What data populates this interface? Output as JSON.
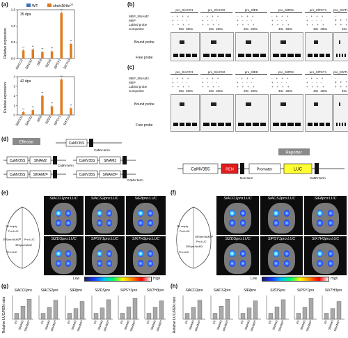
{
  "panels": {
    "a": "(a)",
    "b": "(b)",
    "c": "(c)",
    "d": "(d)",
    "e": "(e)",
    "f": "(f)",
    "g": "(g)",
    "h": "(h)"
  },
  "panel_a": {
    "legend": [
      "WT",
      "slmir164a"
    ],
    "legend_sup": "CR",
    "ylabel": "Relative expression",
    "top": {
      "timepoint": "35 dpa",
      "ylim": [
        0,
        1.5
      ],
      "ticks": [
        "0.0",
        "0.5",
        "1.0",
        "1.5"
      ]
    },
    "bottom": {
      "timepoint": "42 dpa",
      "ylim": [
        0,
        4
      ],
      "ticks": [
        "0",
        "1",
        "2",
        "3",
        "4"
      ]
    },
    "genes": [
      "SlACO1",
      "SlACS2",
      "SlE8",
      "SlZDS",
      "SlPSY1",
      "SlXTH3"
    ],
    "sig": "**"
  },
  "emsa_b": {
    "protein": "MBP_SlNAM2",
    "rows": [
      "MBP_SlNAM2",
      "MBP",
      "Labled probe",
      "Competitor"
    ],
    "bound": "Bound probe",
    "free": "Free probe",
    "promoters": [
      "pro_SlACO1",
      "pro_SlACS2",
      "pro_SlE8",
      "pro_SlZDS",
      "pro_SlPSY1",
      "pro_SlXTH3"
    ],
    "comp": [
      [
        "50x",
        "500x"
      ],
      [
        "20x",
        "200x"
      ],
      [
        "20x",
        "200x"
      ],
      [
        "40x",
        "400x"
      ],
      [
        "40x",
        "400x"
      ],
      [
        "40x",
        "400x"
      ]
    ]
  },
  "emsa_c": {
    "protein": "MBP_SlNAM3",
    "rows": [
      "MBP_SlNAM3",
      "MBP",
      "Labled probe",
      "Competitor"
    ],
    "bound": "Bound probe",
    "free": "Free probe",
    "promoters": [
      "pro_SlACO1",
      "pro_SlACS2",
      "pro_SlE8",
      "pro_SlZDS",
      "pro_SlPSY1",
      "pro_SlXTH3"
    ],
    "comp": [
      [
        "50x",
        "500x"
      ],
      [
        "20x",
        "200x"
      ],
      [
        "20x",
        "200x"
      ],
      [
        "40x",
        "400x"
      ],
      [
        "40x",
        "400x"
      ],
      [
        "40x",
        "400x"
      ]
    ]
  },
  "constructs": {
    "effector": "Effector",
    "reporter": "Reporter",
    "camv": "CaMV35S",
    "term": "CaMV-term",
    "nam2": "SlNAM2",
    "nam2m": "SlNAM2ᴹ",
    "nam3": "SlNAM3",
    "nam3m": "SlNAM3ᴹ",
    "ren": "REN",
    "nos": "Nos-term",
    "promoter": "Promoter",
    "luc": "LUC"
  },
  "leaves_e": {
    "labels": [
      "SlACO1pro:LUC",
      "SlACS2pro:LUC",
      "SlE8pro:LUC",
      "SlZDSpro:LUC",
      "SlPSY1pro:LUC",
      "SlXTH3pro:LUC"
    ],
    "diagram": [
      "SK empty",
      "Pro:LUC",
      "35Spro:NAM2ᴹ",
      "Pro:LUC",
      "35Spro:NAM2",
      "Pro:LUC"
    ]
  },
  "leaves_f": {
    "labels": [
      "SlACO1pro:LUC",
      "SlACS2pro:LUC",
      "SlE8pro:LUC",
      "SlZDSpro:LUC",
      "SlPSY1pro:LUC",
      "SlXTH3pro:LUC"
    ],
    "diagram": [
      "SK empty",
      "Pro:LUC",
      "35Spro:NAM3ᴹ",
      "Pro:LUC",
      "35Spro:NAM3",
      "Pro:LUC"
    ]
  },
  "colorbar": {
    "low": "Low",
    "high": "High"
  },
  "panel_g": {
    "ylabel": "Relative LUC/REN ratio",
    "titles": [
      "SlACO1pro",
      "SlACS2pro",
      "SlE8pro",
      "SlZDSpro",
      "SlPSY1pro",
      "SlXTH3pro"
    ],
    "xlabels": [
      "EV",
      "SlNAM2",
      "SlNAM2ᴹ"
    ],
    "ticks": [
      "0",
      "1",
      "2",
      "3",
      "4"
    ]
  },
  "panel_h": {
    "ylabel": "Relative LUC/REN ratio",
    "titles": [
      "SlACO1pro",
      "SlACS2pro",
      "SlE8pro",
      "SlZDSpro",
      "SlPSY1pro",
      "SlXTH3pro"
    ],
    "xlabels": [
      "EV",
      "SlNAM3",
      "SlNAM3ᴹ"
    ],
    "ticks": [
      "0",
      "1",
      "2",
      "3",
      "4"
    ]
  },
  "chart_data": [
    {
      "type": "bar",
      "title": "35 dpa",
      "ylabel": "Relative expression",
      "categories": [
        "SlACO1",
        "SlACS2",
        "SlE8",
        "SlZDS",
        "SlPSY1",
        "SlXTH3"
      ],
      "series": [
        {
          "name": "WT",
          "values": [
            0.01,
            0.01,
            0.01,
            0.01,
            0.01,
            0.01
          ]
        },
        {
          "name": "slmir164a",
          "values": [
            0.25,
            0.28,
            0.2,
            0.22,
            1.4,
            0.45
          ]
        }
      ],
      "ylim": [
        0,
        1.5
      ]
    },
    {
      "type": "bar",
      "title": "42 dpa",
      "ylabel": "Relative expression",
      "categories": [
        "SlACO1",
        "SlACS2",
        "SlE8",
        "SlZDS",
        "SlPSY1",
        "SlXTH3"
      ],
      "series": [
        {
          "name": "WT",
          "values": [
            0.02,
            0.02,
            0.02,
            0.02,
            0.02,
            0.02
          ]
        },
        {
          "name": "slmir164a",
          "values": [
            0.3,
            0.5,
            2.0,
            0.9,
            3.7,
            0.7
          ]
        }
      ],
      "ylim": [
        0,
        4
      ]
    },
    {
      "type": "bar",
      "ylabel": "Relative LUC/REN ratio",
      "groups": [
        "SlACO1pro",
        "SlACS2pro",
        "SlE8pro",
        "SlZDSpro",
        "SlPSY1pro",
        "SlXTH3pro"
      ],
      "categories": [
        "EV",
        "SlNAM2",
        "SlNAM2ᴹ"
      ],
      "values": [
        [
          1,
          2.2,
          3.4
        ],
        [
          1,
          2.0,
          3.2
        ],
        [
          1,
          1.8,
          3.0
        ],
        [
          1,
          1.9,
          3.3
        ],
        [
          1,
          2.1,
          3.5
        ],
        [
          1,
          2.0,
          3.1
        ]
      ],
      "ylim": [
        0,
        4
      ]
    },
    {
      "type": "bar",
      "ylabel": "Relative LUC/REN ratio",
      "groups": [
        "SlACO1pro",
        "SlACS2pro",
        "SlE8pro",
        "SlZDSpro",
        "SlPSY1pro",
        "SlXTH3pro"
      ],
      "categories": [
        "EV",
        "SlNAM3",
        "SlNAM3ᴹ"
      ],
      "values": [
        [
          1,
          2.0,
          3.2
        ],
        [
          1,
          2.2,
          3.4
        ],
        [
          1,
          1.9,
          3.1
        ],
        [
          1,
          2.1,
          3.3
        ],
        [
          1,
          2.0,
          3.5
        ],
        [
          1,
          1.8,
          3.0
        ]
      ],
      "ylim": [
        0,
        4
      ]
    }
  ]
}
